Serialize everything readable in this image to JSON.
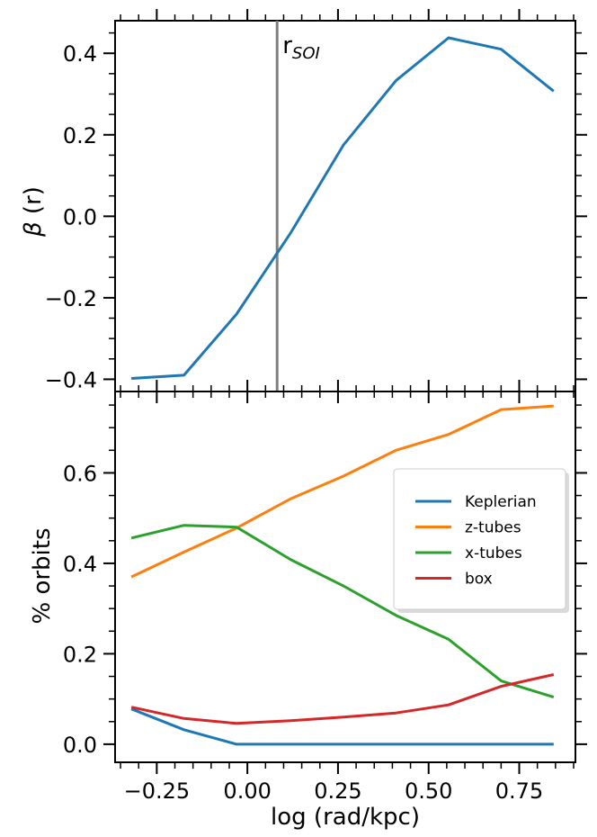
{
  "chart_data": [
    {
      "type": "line",
      "panel": "top",
      "ylabel_symbol": "β",
      "ylabel": " (r)",
      "xlabel": "",
      "xlim": [
        -0.365,
        0.905
      ],
      "ylim": [
        -0.43,
        0.48
      ],
      "yticks": [
        -0.4,
        -0.2,
        0.0,
        0.2,
        0.4
      ],
      "ytick_labels": [
        "−0.4",
        "−0.2",
        "0.0",
        "0.2",
        "0.4"
      ],
      "x": [
        -0.32,
        -0.175,
        -0.03,
        0.12,
        0.265,
        0.41,
        0.555,
        0.7,
        0.845
      ],
      "series": [
        {
          "name": "beta",
          "color": "#1f77b4",
          "values": [
            -0.398,
            -0.39,
            -0.24,
            -0.04,
            0.175,
            0.333,
            0.438,
            0.41,
            0.307
          ]
        }
      ],
      "vline": {
        "x": 0.082,
        "color": "#808080",
        "label": "r",
        "label_sub": "SOI"
      }
    },
    {
      "type": "line",
      "panel": "bottom",
      "ylabel": "% orbits",
      "xlabel": "log (rad/kpc)",
      "xlim": [
        -0.365,
        0.905
      ],
      "ylim": [
        -0.04,
        0.78
      ],
      "yticks": [
        0.0,
        0.2,
        0.4,
        0.6
      ],
      "ytick_labels": [
        "0.0",
        "0.2",
        "0.4",
        "0.6"
      ],
      "xticks": [
        -0.25,
        0.0,
        0.25,
        0.5,
        0.75
      ],
      "xtick_labels": [
        "−0.25",
        "0.00",
        "0.25",
        "0.50",
        "0.75"
      ],
      "x": [
        -0.32,
        -0.175,
        -0.03,
        0.12,
        0.265,
        0.41,
        0.555,
        0.7,
        0.845
      ],
      "series": [
        {
          "name": "Keplerian",
          "color": "#1f77b4",
          "values": [
            0.078,
            0.032,
            0.0,
            0.0,
            0.0,
            0.0,
            0.0,
            0.0,
            0.0
          ]
        },
        {
          "name": "z-tubes",
          "color": "#ff7f0e",
          "values": [
            0.37,
            0.425,
            0.478,
            0.543,
            0.593,
            0.65,
            0.685,
            0.74,
            0.748
          ]
        },
        {
          "name": "x-tubes",
          "color": "#2ca02c",
          "values": [
            0.456,
            0.484,
            0.48,
            0.408,
            0.35,
            0.285,
            0.232,
            0.14,
            0.104
          ]
        },
        {
          "name": "box",
          "color": "#d62728",
          "values": [
            0.082,
            0.057,
            0.046,
            0.052,
            0.06,
            0.069,
            0.087,
            0.128,
            0.154
          ]
        }
      ],
      "legend": {
        "location": "center-right",
        "entries": [
          "Keplerian",
          "z-tubes",
          "x-tubes",
          "box"
        ]
      }
    }
  ]
}
